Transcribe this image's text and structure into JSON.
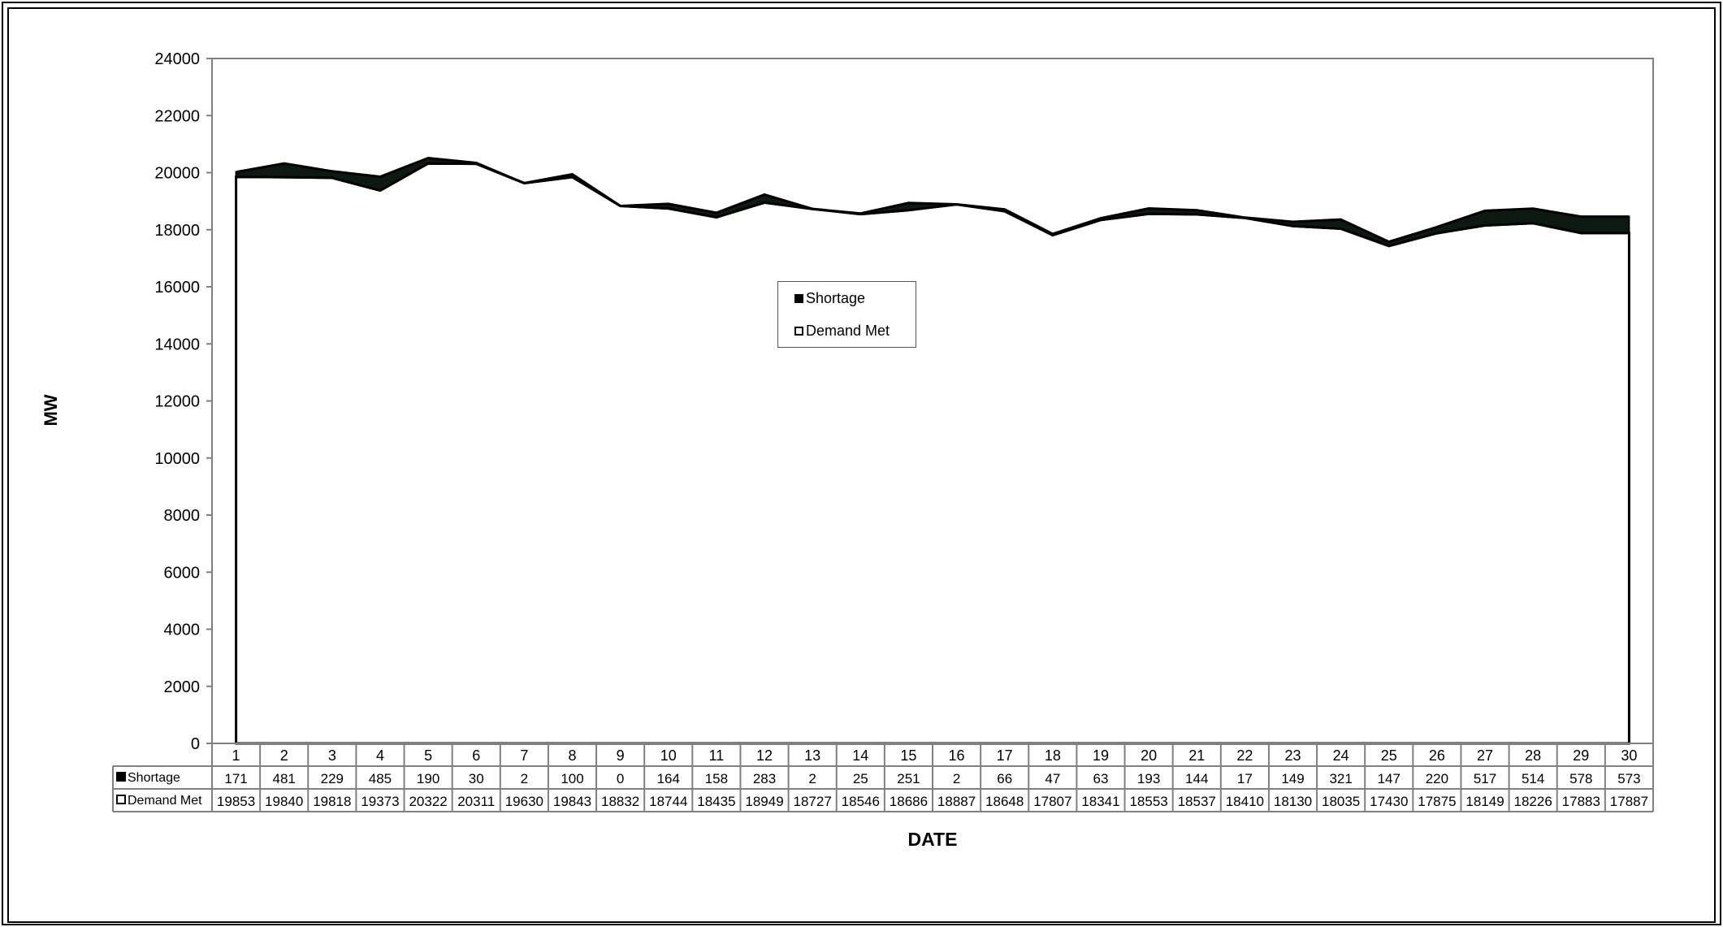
{
  "chart_data": {
    "type": "area",
    "stacked": true,
    "xlabel": "DATE",
    "ylabel": "MW",
    "ylim": [
      0,
      24000
    ],
    "y_ticks": [
      0,
      2000,
      4000,
      6000,
      8000,
      10000,
      12000,
      14000,
      16000,
      18000,
      20000,
      22000,
      24000
    ],
    "categories": [
      "1",
      "2",
      "3",
      "4",
      "5",
      "6",
      "7",
      "8",
      "9",
      "10",
      "11",
      "12",
      "13",
      "14",
      "15",
      "16",
      "17",
      "18",
      "19",
      "20",
      "21",
      "22",
      "23",
      "24",
      "25",
      "26",
      "27",
      "28",
      "29",
      "30"
    ],
    "series": [
      {
        "name": "Shortage",
        "color": "#000000",
        "values": [
          171,
          481,
          229,
          485,
          190,
          30,
          2,
          100,
          0,
          164,
          158,
          283,
          2,
          25,
          251,
          2,
          66,
          47,
          63,
          193,
          144,
          17,
          149,
          321,
          147,
          220,
          517,
          514,
          578,
          573
        ]
      },
      {
        "name": "Demand Met",
        "color": "#ffffff",
        "values": [
          19853,
          19840,
          19818,
          19373,
          20322,
          20311,
          19630,
          19843,
          18832,
          18744,
          18435,
          18949,
          18727,
          18546,
          18686,
          18887,
          18648,
          17807,
          18341,
          18553,
          18537,
          18410,
          18130,
          18035,
          17430,
          17875,
          18149,
          18226,
          17883,
          17887
        ]
      }
    ],
    "legend": {
      "placement": "center",
      "items": [
        "Shortage",
        "Demand Met"
      ]
    },
    "data_table": true,
    "grid": false
  }
}
